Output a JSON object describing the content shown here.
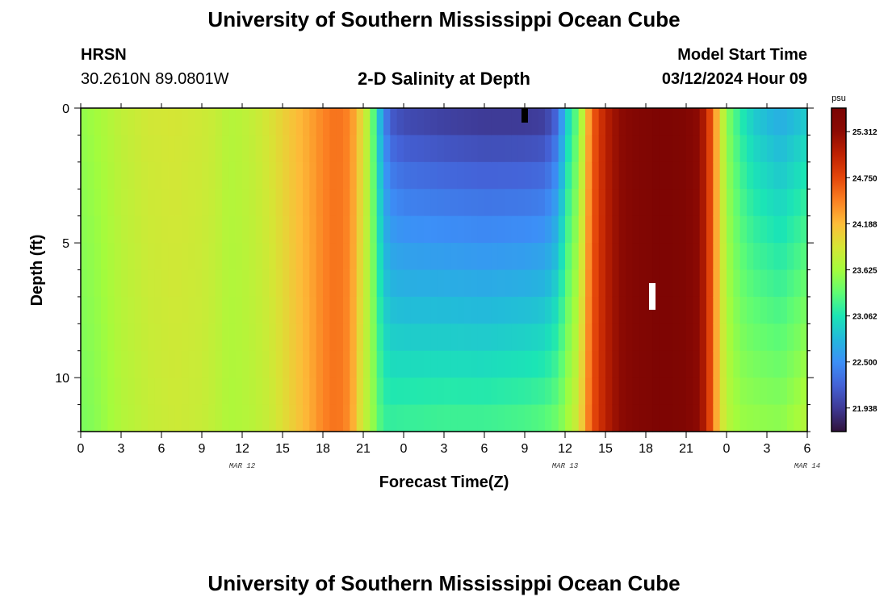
{
  "header": {
    "top_title": "University of Southern Mississippi Ocean Cube",
    "station": "HRSN",
    "coordinates": "30.2610N  89.0801W",
    "model_start_label": "Model Start Time",
    "model_start_value": "03/12/2024 Hour 09",
    "bottom_title": "University of Southern Mississippi Ocean Cube"
  },
  "chart_data": {
    "type": "heatmap",
    "title": "2-D Salinity at Depth",
    "xlabel": "Forecast Time(Z)",
    "ylabel": "Depth (ft)",
    "x_tick_labels": [
      "0",
      "3",
      "6",
      "9",
      "12",
      "15",
      "18",
      "21",
      "0",
      "3",
      "6",
      "9",
      "12",
      "15",
      "18",
      "21",
      "0",
      "3",
      "6"
    ],
    "date_labels": [
      {
        "label": "MAR 12",
        "hour": 12
      },
      {
        "label": "MAR 13",
        "hour": 36
      },
      {
        "label": "MAR 14",
        "hour": 54
      }
    ],
    "x_range_hours": [
      0,
      54
    ],
    "y_ticks": [
      0,
      5,
      10
    ],
    "y_range_ft": [
      0,
      12
    ],
    "colorbar": {
      "unit": "psu",
      "tick_labels": [
        "25.312",
        "24.750",
        "24.188",
        "23.625",
        "23.062",
        "22.500",
        "21.938"
      ],
      "range": [
        21.65,
        25.6
      ],
      "colors": [
        "#30123b",
        "#3e3994",
        "#4462d7",
        "#3c8ff7",
        "#23b8dc",
        "#1be5b5",
        "#5ffc73",
        "#a4fc3c",
        "#d6e535",
        "#fdbc39",
        "#fb8022",
        "#e4460a",
        "#be2102",
        "#8c0a03",
        "#7a0403"
      ]
    },
    "profiles": [
      {
        "hour": 0,
        "surface": 23.55,
        "bottom": 23.45
      },
      {
        "hour": 1,
        "surface": 23.62,
        "bottom": 23.5
      },
      {
        "hour": 2,
        "surface": 23.7,
        "bottom": 23.6
      },
      {
        "hour": 3,
        "surface": 23.78,
        "bottom": 23.7
      },
      {
        "hour": 5,
        "surface": 23.88,
        "bottom": 23.8
      },
      {
        "hour": 7,
        "surface": 23.9,
        "bottom": 23.85
      },
      {
        "hour": 9,
        "surface": 23.86,
        "bottom": 23.82
      },
      {
        "hour": 10,
        "surface": 23.82,
        "bottom": 23.76
      },
      {
        "hour": 11,
        "surface": 23.72,
        "bottom": 23.68
      },
      {
        "hour": 12,
        "surface": 23.75,
        "bottom": 23.7
      },
      {
        "hour": 13,
        "surface": 23.82,
        "bottom": 23.75
      },
      {
        "hour": 14,
        "surface": 23.92,
        "bottom": 23.82
      },
      {
        "hour": 15,
        "surface": 24.05,
        "bottom": 23.95
      },
      {
        "hour": 16,
        "surface": 24.18,
        "bottom": 24.1
      },
      {
        "hour": 17,
        "surface": 24.3,
        "bottom": 24.25
      },
      {
        "hour": 18,
        "surface": 24.45,
        "bottom": 24.45
      },
      {
        "hour": 19,
        "surface": 24.55,
        "bottom": 24.55
      },
      {
        "hour": 20,
        "surface": 24.45,
        "bottom": 24.4
      },
      {
        "hour": 20.5,
        "surface": 24.2,
        "bottom": 24.1
      },
      {
        "hour": 21,
        "surface": 23.95,
        "bottom": 23.8
      },
      {
        "hour": 21.5,
        "surface": 23.6,
        "bottom": 23.7
      },
      {
        "hour": 22,
        "surface": 23.0,
        "bottom": 23.4
      },
      {
        "hour": 22.5,
        "surface": 22.45,
        "bottom": 23.2
      },
      {
        "hour": 23,
        "surface": 22.1,
        "bottom": 23.2
      },
      {
        "hour": 24,
        "surface": 21.98,
        "bottom": 23.22
      },
      {
        "hour": 27,
        "surface": 21.9,
        "bottom": 23.25
      },
      {
        "hour": 30,
        "surface": 21.85,
        "bottom": 23.25
      },
      {
        "hour": 33,
        "surface": 21.85,
        "bottom": 23.3
      },
      {
        "hour": 34.5,
        "surface": 21.88,
        "bottom": 23.35
      },
      {
        "hour": 35.5,
        "surface": 22.2,
        "bottom": 23.45
      },
      {
        "hour": 36,
        "surface": 22.8,
        "bottom": 23.6
      },
      {
        "hour": 37,
        "surface": 23.4,
        "bottom": 23.9
      },
      {
        "hour": 37.5,
        "surface": 24.0,
        "bottom": 24.3
      },
      {
        "hour": 38,
        "surface": 24.6,
        "bottom": 24.7
      },
      {
        "hour": 39,
        "surface": 25.05,
        "bottom": 25.05
      },
      {
        "hour": 40,
        "surface": 25.3,
        "bottom": 25.3
      },
      {
        "hour": 41,
        "surface": 25.45,
        "bottom": 25.45
      },
      {
        "hour": 43,
        "surface": 25.55,
        "bottom": 25.55
      },
      {
        "hour": 45,
        "surface": 25.5,
        "bottom": 25.5
      },
      {
        "hour": 46,
        "surface": 25.3,
        "bottom": 25.3
      },
      {
        "hour": 46.5,
        "surface": 25.0,
        "bottom": 25.0
      },
      {
        "hour": 47,
        "surface": 24.55,
        "bottom": 24.55
      },
      {
        "hour": 47.5,
        "surface": 24.0,
        "bottom": 24.0
      },
      {
        "hour": 48,
        "surface": 23.5,
        "bottom": 23.75
      },
      {
        "hour": 49,
        "surface": 23.1,
        "bottom": 23.6
      },
      {
        "hour": 50,
        "surface": 22.85,
        "bottom": 23.58
      },
      {
        "hour": 52,
        "surface": 22.65,
        "bottom": 23.55
      },
      {
        "hour": 54,
        "surface": 22.85,
        "bottom": 23.75
      }
    ]
  }
}
